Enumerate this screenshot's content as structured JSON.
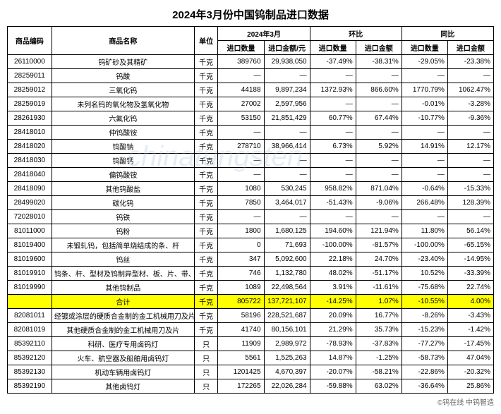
{
  "title": "2024年3月份中国钨制品进口数据",
  "headers": {
    "code": "商品编码",
    "name": "商品名称",
    "unit": "单位",
    "period": "2024年3月",
    "mom": "环比",
    "yoy": "同比",
    "imp_qty": "进口数量",
    "imp_val": "进口金额/元",
    "imp_val2": "进口金额"
  },
  "rows": [
    {
      "code": "26110000",
      "name": "钨矿砂及其精矿",
      "unit": "千克",
      "qty": "389760",
      "val": "29,938,050",
      "mq": "-37.49%",
      "mv": "-38.31%",
      "yq": "-29.05%",
      "yv": "-23.38%"
    },
    {
      "code": "28259011",
      "name": "钨酸",
      "unit": "千克",
      "qty": "—",
      "val": "—",
      "mq": "—",
      "mv": "—",
      "yq": "—",
      "yv": "—"
    },
    {
      "code": "28259012",
      "name": "三氧化钨",
      "unit": "千克",
      "qty": "44188",
      "val": "9,897,234",
      "mq": "1372.93%",
      "mv": "866.60%",
      "yq": "1770.79%",
      "yv": "1062.47%"
    },
    {
      "code": "28259019",
      "name": "未列名钨的氧化物及氢氧化物",
      "unit": "千克",
      "qty": "27002",
      "val": "2,597,956",
      "mq": "—",
      "mv": "—",
      "yq": "-0.01%",
      "yv": "-3.28%"
    },
    {
      "code": "28261930",
      "name": "六氟化钨",
      "unit": "千克",
      "qty": "53150",
      "val": "21,851,429",
      "mq": "60.77%",
      "mv": "67.44%",
      "yq": "-10.77%",
      "yv": "-9.36%"
    },
    {
      "code": "28418010",
      "name": "仲钨酸铵",
      "unit": "千克",
      "qty": "—",
      "val": "—",
      "mq": "—",
      "mv": "—",
      "yq": "—",
      "yv": "—"
    },
    {
      "code": "28418020",
      "name": "钨酸钠",
      "unit": "千克",
      "qty": "278710",
      "val": "38,966,414",
      "mq": "6.73%",
      "mv": "5.92%",
      "yq": "14.91%",
      "yv": "12.17%"
    },
    {
      "code": "28418030",
      "name": "钨酸钙",
      "unit": "千克",
      "qty": "—",
      "val": "—",
      "mq": "—",
      "mv": "—",
      "yq": "—",
      "yv": "—"
    },
    {
      "code": "28418040",
      "name": "偏钨酸铵",
      "unit": "千克",
      "qty": "—",
      "val": "—",
      "mq": "—",
      "mv": "—",
      "yq": "—",
      "yv": "—"
    },
    {
      "code": "28418090",
      "name": "其他钨酸盐",
      "unit": "千克",
      "qty": "1080",
      "val": "530,245",
      "mq": "958.82%",
      "mv": "871.04%",
      "yq": "-0.64%",
      "yv": "-15.33%"
    },
    {
      "code": "28499020",
      "name": "碳化钨",
      "unit": "千克",
      "qty": "7850",
      "val": "3,464,017",
      "mq": "-51.43%",
      "mv": "-9.06%",
      "yq": "266.48%",
      "yv": "128.39%"
    },
    {
      "code": "72028010",
      "name": "钨铁",
      "unit": "千克",
      "qty": "—",
      "val": "—",
      "mq": "—",
      "mv": "—",
      "yq": "—",
      "yv": "—"
    },
    {
      "code": "81011000",
      "name": "钨粉",
      "unit": "千克",
      "qty": "1800",
      "val": "1,680,125",
      "mq": "194.60%",
      "mv": "121.94%",
      "yq": "11.80%",
      "yv": "56.14%"
    },
    {
      "code": "81019400",
      "name": "未锻轧钨，包括简单烧结成的条、杆",
      "unit": "千克",
      "qty": "0",
      "val": "71,693",
      "mq": "-100.00%",
      "mv": "-81.57%",
      "yq": "-100.00%",
      "yv": "-65.15%"
    },
    {
      "code": "81019600",
      "name": "钨丝",
      "unit": "千克",
      "qty": "347",
      "val": "5,092,600",
      "mq": "22.18%",
      "mv": "24.70%",
      "yq": "-23.40%",
      "yv": "-14.95%"
    },
    {
      "code": "81019910",
      "name": "钨条、杆、型材及钨制异型材、板、片、带、箔",
      "unit": "千克",
      "qty": "746",
      "val": "1,132,780",
      "mq": "48.02%",
      "mv": "-51.17%",
      "yq": "10.52%",
      "yv": "-33.39%"
    },
    {
      "code": "81019990",
      "name": "其他钨制品",
      "unit": "千克",
      "qty": "1089",
      "val": "22,498,564",
      "mq": "3.91%",
      "mv": "-11.61%",
      "yq": "-75.68%",
      "yv": "22.74%"
    },
    {
      "code": "",
      "name": "合计",
      "unit": "千克",
      "qty": "805722",
      "val": "137,721,107",
      "mq": "-14.25%",
      "mv": "1.07%",
      "yq": "-10.55%",
      "yv": "4.00%",
      "total": true
    },
    {
      "code": "82081011",
      "name": "经镀或涂层的硬质合金制的金工机械用刀及片",
      "unit": "千克",
      "qty": "58196",
      "val": "228,521,687",
      "mq": "20.09%",
      "mv": "16.77%",
      "yq": "-8.26%",
      "yv": "-3.43%"
    },
    {
      "code": "82081019",
      "name": "其他硬质合金制的金工机械用刀及片",
      "unit": "千克",
      "qty": "41740",
      "val": "80,156,101",
      "mq": "21.29%",
      "mv": "35.73%",
      "yq": "-15.23%",
      "yv": "-1.42%"
    },
    {
      "code": "85392110",
      "name": "科研、医疗专用卤钨灯",
      "unit": "只",
      "qty": "11909",
      "val": "2,989,972",
      "mq": "-78.93%",
      "mv": "-37.83%",
      "yq": "-77.27%",
      "yv": "-17.45%"
    },
    {
      "code": "85392120",
      "name": "火车、航空器及船舶用卤钨灯",
      "unit": "只",
      "qty": "5561",
      "val": "1,525,263",
      "mq": "14.87%",
      "mv": "-1.25%",
      "yq": "-58.73%",
      "yv": "47.04%"
    },
    {
      "code": "85392130",
      "name": "机动车辆用卤钨灯",
      "unit": "只",
      "qty": "1201425",
      "val": "4,670,397",
      "mq": "-20.07%",
      "mv": "-58.21%",
      "yq": "-22.86%",
      "yv": "-20.32%"
    },
    {
      "code": "85392190",
      "name": "其他卤钨灯",
      "unit": "只",
      "qty": "172265",
      "val": "22,026,284",
      "mq": "-59.88%",
      "mv": "63.02%",
      "yq": "-36.64%",
      "yv": "25.86%"
    }
  ],
  "footer": "©钨在线  中钨智造",
  "watermark": "chinatungsten"
}
